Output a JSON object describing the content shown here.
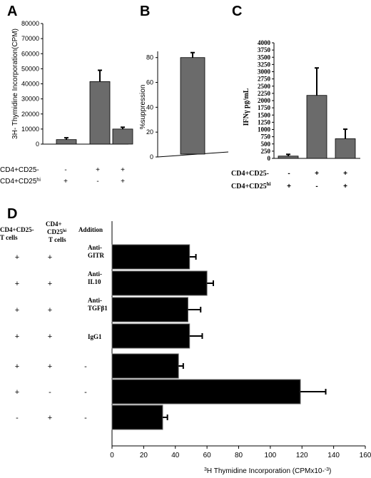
{
  "chart_data": [
    {
      "panel": "A",
      "type": "bar",
      "ylabel": "3H- Thymidine Incorporation(CPM)",
      "ylim": [
        0,
        80000
      ],
      "yticks": [
        0,
        10000,
        20000,
        30000,
        40000,
        50000,
        60000,
        70000,
        80000
      ],
      "values": [
        3000,
        41500,
        10000
      ],
      "errors": [
        1200,
        7500,
        1200
      ],
      "conditions": [
        {
          "label": "CD4+CD25-",
          "signs": [
            "-",
            "+",
            "+"
          ]
        },
        {
          "label": "CD4+CD25hi",
          "signs": [
            "+",
            "-",
            "+"
          ]
        }
      ],
      "bar_color": "#6b6b6b"
    },
    {
      "panel": "B",
      "type": "bar",
      "ylabel": "%suppression",
      "ylim": [
        0,
        85
      ],
      "yticks": [
        0,
        20,
        40,
        60,
        80
      ],
      "values": [
        80
      ],
      "errors": [
        4
      ],
      "bar_color": "#6b6b6b"
    },
    {
      "panel": "C",
      "type": "bar",
      "ylabel": "IFNγ pg/mL",
      "ylim": [
        0,
        4000
      ],
      "yticks": [
        0,
        250,
        500,
        750,
        1000,
        1250,
        1500,
        1750,
        2000,
        2250,
        2500,
        2750,
        3000,
        3250,
        3500,
        3750,
        4000
      ],
      "values": [
        80,
        2180,
        680
      ],
      "errors": [
        60,
        950,
        330
      ],
      "conditions": [
        {
          "label": "CD4+CD25-",
          "signs": [
            "-",
            "+",
            "+"
          ]
        },
        {
          "label": "CD4+CD25hi",
          "signs": [
            "+",
            "-",
            "+"
          ]
        }
      ],
      "bar_color": "#6b6b6b"
    },
    {
      "panel": "D",
      "type": "bar",
      "orientation": "horizontal",
      "xlabel": "3H Thymidine   Incorporation (CPMx10-3)",
      "xlim": [
        0,
        160
      ],
      "xticks": [
        0,
        20,
        40,
        60,
        80,
        100,
        120,
        140,
        160
      ],
      "column_headers": [
        "CD4+CD25- T cells",
        "CD4+ CD25hi T cells",
        "Addition"
      ],
      "rows": [
        {
          "cd25neg": "+",
          "cd25hi": "+",
          "addition": "Anti- GITR",
          "value": 49,
          "error": 4
        },
        {
          "cd25neg": "+",
          "cd25hi": "+",
          "addition": "Anti- IL10",
          "value": 60,
          "error": 4
        },
        {
          "cd25neg": "+",
          "cd25hi": "+",
          "addition": "Anti- TGFβ1",
          "value": 48,
          "error": 8
        },
        {
          "cd25neg": "+",
          "cd25hi": "+",
          "addition": "IgG1",
          "value": 49,
          "error": 8
        },
        {
          "cd25neg": "+",
          "cd25hi": "+",
          "addition": "-",
          "value": 42,
          "error": 3
        },
        {
          "cd25neg": "+",
          "cd25hi": "-",
          "addition": "-",
          "value": 119,
          "error": 16
        },
        {
          "cd25neg": "-",
          "cd25hi": "+",
          "addition": "-",
          "value": 32,
          "error": 3
        }
      ],
      "bar_color": "#000000"
    }
  ]
}
